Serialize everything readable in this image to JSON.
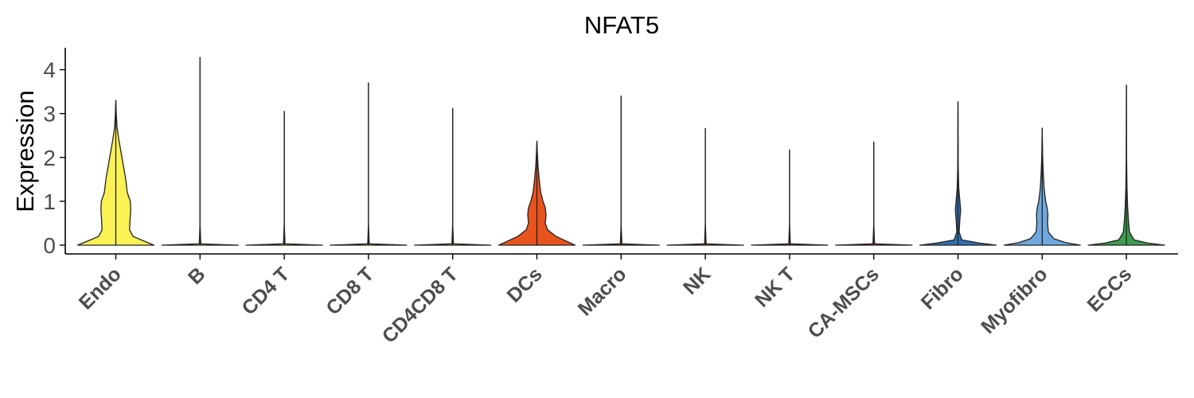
{
  "chart_data": {
    "type": "violin",
    "title": "NFAT5",
    "ylabel": "Expression",
    "xlabel": "",
    "ylim": [
      -0.2,
      4.5
    ],
    "yticks": [
      0,
      1,
      2,
      3,
      4
    ],
    "grid": false,
    "legend": "none",
    "categories": [
      "Endo",
      "B",
      "CD4 T",
      "CD8 T",
      "CD4CD8 T",
      "DCs",
      "Macro",
      "NK",
      "NK T",
      "CA-MSCs",
      "Fibro",
      "Myofibro",
      "ECCs"
    ],
    "series": [
      {
        "category": "Endo",
        "color": "#FAF155",
        "max": 3.3,
        "profile": [
          [
            0,
            1.0
          ],
          [
            0.1,
            0.72
          ],
          [
            0.2,
            0.45
          ],
          [
            0.35,
            0.36
          ],
          [
            0.55,
            0.37
          ],
          [
            0.8,
            0.39
          ],
          [
            1.0,
            0.38
          ],
          [
            1.2,
            0.3
          ],
          [
            1.5,
            0.26
          ],
          [
            1.8,
            0.2
          ],
          [
            2.1,
            0.14
          ],
          [
            2.4,
            0.08
          ],
          [
            2.7,
            0.03
          ],
          [
            3.0,
            0.012
          ],
          [
            3.3,
            0
          ]
        ]
      },
      {
        "category": "B",
        "color": "#FAF155",
        "max": 4.28,
        "profile": [
          [
            0,
            1.0
          ],
          [
            0.03,
            0.02
          ],
          [
            0.5,
            0.0
          ],
          [
            4.28,
            0
          ]
        ]
      },
      {
        "category": "CD4 T",
        "color": "#FAF155",
        "max": 3.05,
        "profile": [
          [
            0,
            1.0
          ],
          [
            0.03,
            0.02
          ],
          [
            0.5,
            0.0
          ],
          [
            3.05,
            0
          ]
        ]
      },
      {
        "category": "CD8 T",
        "color": "#FAF155",
        "max": 3.7,
        "profile": [
          [
            0,
            1.0
          ],
          [
            0.03,
            0.02
          ],
          [
            0.5,
            0.0
          ],
          [
            3.7,
            0
          ]
        ]
      },
      {
        "category": "CD4CD8 T",
        "color": "#FAF155",
        "max": 3.12,
        "profile": [
          [
            0,
            1.0
          ],
          [
            0.03,
            0.02
          ],
          [
            0.5,
            0.0
          ],
          [
            3.12,
            0
          ]
        ]
      },
      {
        "category": "DCs",
        "color": "#E8541E",
        "max": 2.37,
        "profile": [
          [
            0,
            1.0
          ],
          [
            0.08,
            0.8
          ],
          [
            0.2,
            0.5
          ],
          [
            0.35,
            0.28
          ],
          [
            0.5,
            0.22
          ],
          [
            0.7,
            0.24
          ],
          [
            0.85,
            0.22
          ],
          [
            1.0,
            0.16
          ],
          [
            1.2,
            0.1
          ],
          [
            1.5,
            0.06
          ],
          [
            1.8,
            0.03
          ],
          [
            2.1,
            0.012
          ],
          [
            2.37,
            0
          ]
        ]
      },
      {
        "category": "Macro",
        "color": "#E8541E",
        "max": 3.4,
        "profile": [
          [
            0,
            1.0
          ],
          [
            0.03,
            0.02
          ],
          [
            0.5,
            0.0
          ],
          [
            3.4,
            0
          ]
        ]
      },
      {
        "category": "NK",
        "color": "#E8541E",
        "max": 2.66,
        "profile": [
          [
            0,
            1.0
          ],
          [
            0.03,
            0.02
          ],
          [
            0.5,
            0.0
          ],
          [
            2.66,
            0
          ]
        ]
      },
      {
        "category": "NK T",
        "color": "#E8541E",
        "max": 2.17,
        "profile": [
          [
            0,
            1.0
          ],
          [
            0.03,
            0.02
          ],
          [
            0.5,
            0.0
          ],
          [
            2.17,
            0
          ]
        ]
      },
      {
        "category": "CA-MSCs",
        "color": "#E8541E",
        "max": 2.35,
        "profile": [
          [
            0,
            1.0
          ],
          [
            0.03,
            0.02
          ],
          [
            0.5,
            0.0
          ],
          [
            2.35,
            0
          ]
        ]
      },
      {
        "category": "Fibro",
        "color": "#2F6FAF",
        "max": 3.27,
        "profile": [
          [
            0,
            1.0
          ],
          [
            0.05,
            0.55
          ],
          [
            0.12,
            0.1
          ],
          [
            0.3,
            0.03
          ],
          [
            0.6,
            0.05
          ],
          [
            0.8,
            0.07
          ],
          [
            1.0,
            0.05
          ],
          [
            1.3,
            0.02
          ],
          [
            1.8,
            0.006
          ],
          [
            3.27,
            0
          ]
        ]
      },
      {
        "category": "Myofibro",
        "color": "#6FA8DC",
        "max": 2.67,
        "profile": [
          [
            0,
            1.0
          ],
          [
            0.06,
            0.6
          ],
          [
            0.15,
            0.3
          ],
          [
            0.3,
            0.16
          ],
          [
            0.5,
            0.14
          ],
          [
            0.7,
            0.15
          ],
          [
            0.85,
            0.13
          ],
          [
            1.0,
            0.09
          ],
          [
            1.3,
            0.05
          ],
          [
            1.6,
            0.03
          ],
          [
            2.0,
            0.012
          ],
          [
            2.67,
            0
          ]
        ]
      },
      {
        "category": "ECCs",
        "color": "#3E9B4E",
        "max": 3.65,
        "profile": [
          [
            0,
            1.0
          ],
          [
            0.05,
            0.55
          ],
          [
            0.12,
            0.2
          ],
          [
            0.3,
            0.08
          ],
          [
            0.6,
            0.05
          ],
          [
            0.9,
            0.03
          ],
          [
            1.3,
            0.015
          ],
          [
            2.0,
            0.005
          ],
          [
            3.65,
            0
          ]
        ]
      }
    ]
  }
}
